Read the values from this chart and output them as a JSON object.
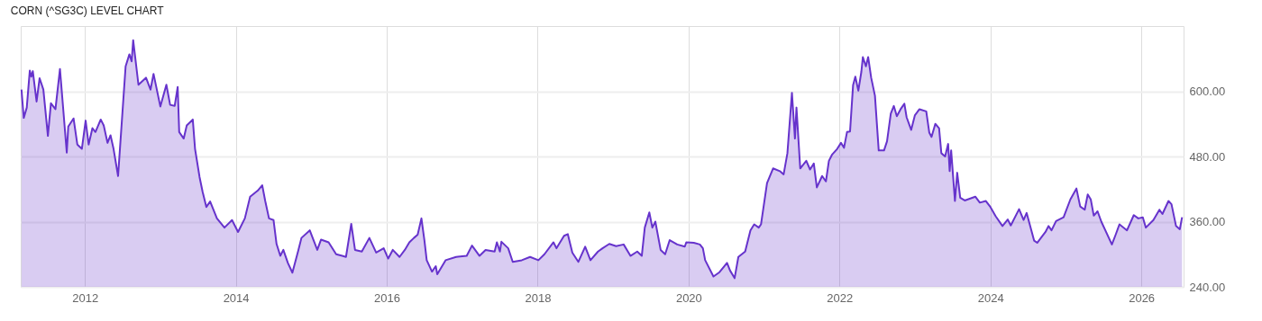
{
  "chart_data": {
    "type": "area",
    "title": "CORN (^SG3C) LEVEL CHART",
    "x": [
      2011.16,
      2011.19,
      2011.23,
      2011.27,
      2011.29,
      2011.31,
      2011.36,
      2011.4,
      2011.45,
      2011.51,
      2011.55,
      2011.61,
      2011.67,
      2011.76,
      2011.78,
      2011.85,
      2011.9,
      2011.96,
      2012.01,
      2012.05,
      2012.1,
      2012.14,
      2012.21,
      2012.25,
      2012.3,
      2012.34,
      2012.38,
      2012.44,
      2012.54,
      2012.59,
      2012.62,
      2012.64,
      2012.71,
      2012.81,
      2012.87,
      2012.91,
      2013.0,
      2013.08,
      2013.13,
      2013.19,
      2013.23,
      2013.25,
      2013.31,
      2013.35,
      2013.43,
      2013.46,
      2013.52,
      2013.56,
      2013.61,
      2013.66,
      2013.75,
      2013.85,
      2013.95,
      2014.03,
      2014.12,
      2014.19,
      2014.29,
      2014.35,
      2014.39,
      2014.44,
      2014.5,
      2014.54,
      2014.59,
      2014.63,
      2014.69,
      2014.75,
      2014.83,
      2014.87,
      2014.98,
      2015.08,
      2015.13,
      2015.23,
      2015.33,
      2015.41,
      2015.46,
      2015.53,
      2015.58,
      2015.67,
      2015.77,
      2015.86,
      2015.96,
      2016.02,
      2016.08,
      2016.17,
      2016.24,
      2016.3,
      2016.36,
      2016.41,
      2016.46,
      2016.5,
      2016.53,
      2016.6,
      2016.65,
      2016.67,
      2016.78,
      2016.92,
      2017.06,
      2017.13,
      2017.23,
      2017.31,
      2017.43,
      2017.46,
      2017.5,
      2017.52,
      2017.61,
      2017.67,
      2017.79,
      2017.9,
      2018.01,
      2018.09,
      2018.21,
      2018.25,
      2018.35,
      2018.4,
      2018.46,
      2018.54,
      2018.63,
      2018.7,
      2018.8,
      2018.86,
      2018.95,
      2019.04,
      2019.14,
      2019.23,
      2019.32,
      2019.38,
      2019.42,
      2019.48,
      2019.52,
      2019.56,
      2019.63,
      2019.69,
      2019.75,
      2019.85,
      2019.95,
      2019.97,
      2020.07,
      2020.15,
      2020.19,
      2020.22,
      2020.33,
      2020.41,
      2020.51,
      2020.55,
      2020.61,
      2020.66,
      2020.75,
      2020.82,
      2020.87,
      2020.93,
      2020.96,
      2021.04,
      2021.12,
      2021.21,
      2021.26,
      2021.31,
      2021.37,
      2021.41,
      2021.43,
      2021.48,
      2021.56,
      2021.61,
      2021.66,
      2021.7,
      2021.77,
      2021.82,
      2021.86,
      2021.9,
      2021.97,
      2022.02,
      2022.06,
      2022.1,
      2022.14,
      2022.18,
      2022.21,
      2022.25,
      2022.29,
      2022.31,
      2022.35,
      2022.38,
      2022.42,
      2022.47,
      2022.52,
      2022.59,
      2022.63,
      2022.68,
      2022.72,
      2022.76,
      2022.81,
      2022.86,
      2022.89,
      2022.95,
      2023.0,
      2023.06,
      2023.15,
      2023.19,
      2023.22,
      2023.27,
      2023.32,
      2023.35,
      2023.4,
      2023.44,
      2023.46,
      2023.48,
      2023.53,
      2023.56,
      2023.6,
      2023.66,
      2023.8,
      2023.86,
      2023.94,
      2024.0,
      2024.07,
      2024.16,
      2024.23,
      2024.27,
      2024.38,
      2024.44,
      2024.48,
      2024.58,
      2024.62,
      2024.73,
      2024.77,
      2024.81,
      2024.87,
      2024.97,
      2025.06,
      2025.14,
      2025.19,
      2025.25,
      2025.29,
      2025.33,
      2025.37,
      2025.42,
      2025.47,
      2025.61,
      2025.66,
      2025.71,
      2025.81,
      2025.9,
      2025.96,
      2026.02,
      2026.06,
      2026.16,
      2026.24,
      2026.28,
      2026.36,
      2026.4,
      2026.46,
      2026.51,
      2026.54
    ],
    "series": [
      {
        "color": "#6633cc",
        "values": [
          603,
          551,
          570,
          638,
          627,
          637,
          581,
          624,
          603,
          518,
          578,
          567,
          641,
          487,
          535,
          550,
          502,
          494,
          546,
          502,
          532,
          525,
          548,
          537,
          505,
          519,
          494,
          444,
          646,
          668,
          655,
          694,
          612,
          625,
          603,
          632,
          572,
          612,
          575,
          573,
          608,
          525,
          513,
          537,
          548,
          494,
          442,
          415,
          387,
          397,
          366,
          349,
          363,
          341,
          366,
          406,
          417,
          427,
          398,
          366,
          363,
          319,
          297,
          308,
          284,
          266,
          308,
          330,
          344,
          308,
          327,
          322,
          300,
          297,
          295,
          356,
          308,
          305,
          330,
          303,
          311,
          292,
          308,
          295,
          308,
          322,
          330,
          336,
          366,
          325,
          289,
          268,
          278,
          263,
          289,
          295,
          297,
          316,
          297,
          308,
          305,
          322,
          305,
          323,
          311,
          286,
          289,
          295,
          289,
          300,
          322,
          311,
          334,
          337,
          303,
          286,
          314,
          289,
          305,
          311,
          319,
          315,
          318,
          297,
          305,
          297,
          349,
          377,
          349,
          360,
          308,
          300,
          326,
          318,
          314,
          322,
          321,
          318,
          311,
          289,
          259,
          267,
          284,
          270,
          256,
          295,
          305,
          344,
          355,
          349,
          355,
          431,
          458,
          453,
          447,
          486,
          597,
          513,
          570,
          458,
          472,
          456,
          467,
          423,
          444,
          434,
          472,
          483,
          494,
          505,
          496,
          525,
          526,
          611,
          627,
          601,
          636,
          663,
          646,
          663,
          625,
          592,
          491,
          491,
          508,
          559,
          573,
          554,
          567,
          577,
          552,
          529,
          556,
          567,
          563,
          524,
          516,
          540,
          532,
          486,
          480,
          503,
          453,
          491,
          398,
          450,
          404,
          399,
          406,
          395,
          398,
          387,
          370,
          352,
          364,
          353,
          383,
          363,
          376,
          325,
          321,
          341,
          352,
          344,
          361,
          368,
          401,
          421,
          388,
          382,
          410,
          401,
          371,
          379,
          360,
          318,
          336,
          355,
          344,
          372,
          366,
          368,
          349,
          363,
          382,
          374,
          398,
          392,
          352,
          346,
          368
        ]
      }
    ],
    "xlim": [
      2011.15,
      2026.56
    ],
    "xticks": [
      2012,
      2014,
      2016,
      2018,
      2020,
      2022,
      2024,
      2026
    ],
    "ylim": [
      240,
      720
    ],
    "yticks": [
      {
        "value": 240,
        "label": "240.00"
      },
      {
        "value": 360,
        "label": "360.00"
      },
      {
        "value": 480,
        "label": "480.00"
      },
      {
        "value": 600,
        "label": "600.00"
      }
    ],
    "grid": true
  }
}
